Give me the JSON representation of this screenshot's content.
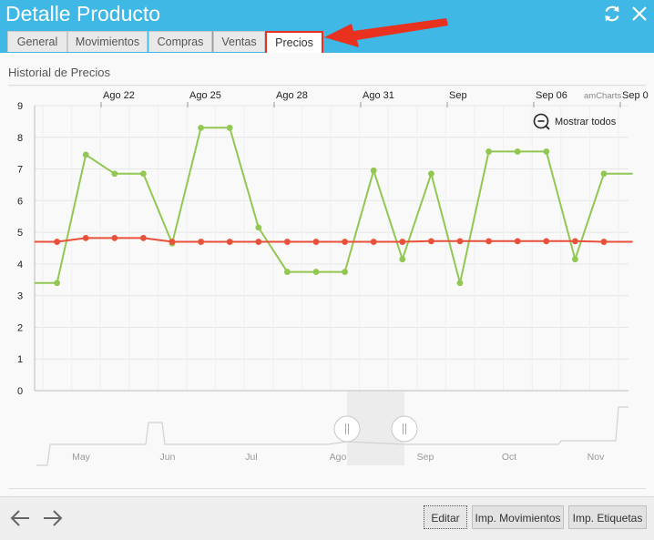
{
  "window": {
    "title": "Detalle Producto",
    "refresh_icon": "refresh-icon",
    "close_icon": "close-icon"
  },
  "tabs": [
    {
      "label": "General"
    },
    {
      "label": "Movimientos"
    },
    {
      "label": "Compras"
    },
    {
      "label": "Ventas"
    },
    {
      "label": "Precios",
      "active": true
    }
  ],
  "section": {
    "title": "Historial de Precios"
  },
  "chart_data": {
    "type": "line",
    "credit": "amCharts",
    "zoom_out_label": "Mostrar todos",
    "ylim": [
      0,
      9
    ],
    "y_ticks": [
      "0",
      "1",
      "2",
      "3",
      "4",
      "5",
      "6",
      "7",
      "8",
      "9"
    ],
    "x_top_labels": [
      "Ago 22",
      "Ago 25",
      "Ago 28",
      "Ago 31",
      "Sep",
      "Sep 06",
      "Sep 0"
    ],
    "x": [
      "Ago 19",
      "Ago 20",
      "Ago 21",
      "Ago 22",
      "Ago 23",
      "Ago 24",
      "Ago 25",
      "Ago 26",
      "Ago 27",
      "Ago 28",
      "Ago 29",
      "Ago 30",
      "Ago 31",
      "Sep 01",
      "Sep 02",
      "Sep 03",
      "Sep 04",
      "Sep 05",
      "Sep 06",
      "Sep 07",
      "Sep 08",
      "Sep 09"
    ],
    "series": [
      {
        "color": "#92c752",
        "values": [
          3.4,
          3.4,
          7.45,
          6.85,
          6.85,
          4.65,
          8.3,
          8.3,
          5.15,
          3.75,
          3.75,
          3.75,
          6.95,
          4.15,
          6.85,
          3.4,
          7.55,
          7.55,
          7.55,
          4.15,
          6.85,
          6.85
        ]
      },
      {
        "color": "#e8503a",
        "values": [
          4.7,
          4.7,
          4.82,
          4.82,
          4.82,
          4.7,
          4.7,
          4.7,
          4.7,
          4.7,
          4.7,
          4.7,
          4.7,
          4.7,
          4.72,
          4.72,
          4.72,
          4.72,
          4.72,
          4.72,
          4.7,
          4.7
        ]
      }
    ],
    "scrollbar": {
      "labels": [
        "May",
        "Jun",
        "Jul",
        "Ago",
        "Sep",
        "Oct",
        "Nov"
      ]
    }
  },
  "footer": {
    "back_icon": "arrow-left-icon",
    "forward_icon": "arrow-right-icon",
    "buttons": [
      {
        "label": "Editar"
      },
      {
        "label": "Imp. Movimientos"
      },
      {
        "label": "Imp. Etiquetas"
      }
    ]
  },
  "annotation": {
    "arrow_color": "#e8311e"
  }
}
